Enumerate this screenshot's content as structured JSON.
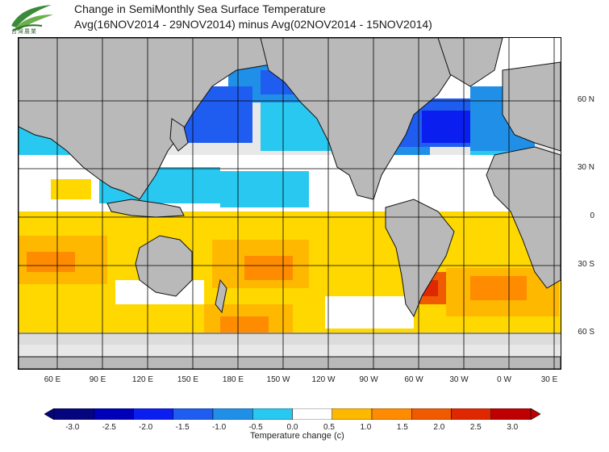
{
  "header": {
    "title_line1": "Change in SemiMonthly Sea Surface Temperature",
    "title_line2": "Avg(16NOV2014 - 29NOV2014) minus Avg(02NOV2014 - 15NOV2014)"
  },
  "logo": {
    "icon": "leaf-logo-icon",
    "caption": "台灣農業"
  },
  "map": {
    "lat_labels": [
      "60 N",
      "30 N",
      "0",
      "30 S",
      "60 S"
    ],
    "lon_labels": [
      "60 E",
      "90 E",
      "120 E",
      "150 E",
      "180 E",
      "150 W",
      "120 W",
      "90 W",
      "60 W",
      "30 W",
      "0 W",
      "30 E"
    ],
    "colors": {
      "land": "#b9b9b9",
      "ice": "#dcdcdc",
      "grid": "#000000",
      "coast": "#111111"
    }
  },
  "colorbar": {
    "ticks": [
      "-3.0",
      "-2.5",
      "-2.0",
      "-1.5",
      "-1.0",
      "-0.5",
      "0.0",
      "0.5",
      "1.0",
      "1.5",
      "2.0",
      "2.5",
      "3.0"
    ],
    "colors": [
      "#05057d",
      "#0000b8",
      "#0a1ef0",
      "#1f5cf0",
      "#1f8fe8",
      "#28c8f0",
      "#ffffff",
      "#ffd800",
      "#ffb800",
      "#ff8c00",
      "#f05a00",
      "#e02800",
      "#c00000"
    ],
    "title": "Temperature change  (c)"
  }
}
